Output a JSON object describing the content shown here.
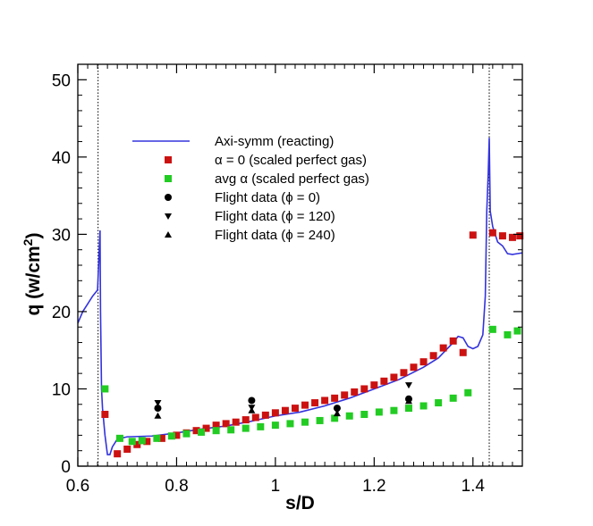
{
  "chart_data": {
    "type": "line",
    "xlabel": "s/D",
    "ylabel_main": "q (w/cm",
    "ylabel_sup": "2",
    "ylabel_close": ")",
    "xlim": [
      0.6,
      1.5
    ],
    "ylim": [
      0,
      52
    ],
    "xticks": [
      0.6,
      0.8,
      1.0,
      1.2,
      1.4
    ],
    "xtick_labels": [
      "0.6",
      "0.8",
      "1",
      "1.2",
      "1.4"
    ],
    "yticks": [
      0,
      10,
      20,
      30,
      40,
      50
    ],
    "ytick_labels": [
      "0",
      "10",
      "20",
      "30",
      "40",
      "50"
    ],
    "grid": false,
    "legend_position": "upper-left",
    "reference_lines_x": [
      0.641,
      1.433
    ],
    "series": [
      {
        "name": "Axi-symm (reacting)",
        "kind": "line",
        "color": "#3333dd",
        "x": [
          0.6,
          0.61,
          0.62,
          0.63,
          0.64,
          0.645,
          0.646,
          0.648,
          0.65,
          0.655,
          0.66,
          0.665,
          0.67,
          0.68,
          0.7,
          0.75,
          0.8,
          0.85,
          0.9,
          0.95,
          1.0,
          1.05,
          1.1,
          1.15,
          1.2,
          1.25,
          1.3,
          1.33,
          1.36,
          1.37,
          1.38,
          1.39,
          1.4,
          1.41,
          1.42,
          1.425,
          1.428,
          1.431,
          1.433,
          1.435,
          1.44,
          1.45,
          1.46,
          1.47,
          1.48,
          1.49,
          1.5
        ],
        "y": [
          18.5,
          20.0,
          21.0,
          22.0,
          22.8,
          30.5,
          20.0,
          10.0,
          7.5,
          4.0,
          1.5,
          1.5,
          2.5,
          3.5,
          3.8,
          3.9,
          4.3,
          4.8,
          5.2,
          5.8,
          6.5,
          7.0,
          7.8,
          8.8,
          10.0,
          11.2,
          12.8,
          14.0,
          16.0,
          16.8,
          16.6,
          15.5,
          15.2,
          15.5,
          17.0,
          22.0,
          33.0,
          38.0,
          42.5,
          33.0,
          31.0,
          29.0,
          28.5,
          27.5,
          27.4,
          27.5,
          27.6
        ]
      },
      {
        "name": "α = 0 (scaled perfect gas)",
        "kind": "square",
        "color": "#cc1111",
        "x": [
          0.655,
          0.68,
          0.7,
          0.72,
          0.74,
          0.77,
          0.8,
          0.82,
          0.84,
          0.86,
          0.88,
          0.9,
          0.92,
          0.94,
          0.96,
          0.98,
          1.0,
          1.02,
          1.04,
          1.06,
          1.08,
          1.1,
          1.12,
          1.14,
          1.16,
          1.18,
          1.2,
          1.22,
          1.24,
          1.26,
          1.28,
          1.3,
          1.32,
          1.34,
          1.36,
          1.38,
          1.4,
          1.44,
          1.46,
          1.48,
          1.495
        ],
        "y": [
          6.7,
          1.6,
          2.2,
          2.8,
          3.2,
          3.6,
          4.0,
          4.3,
          4.6,
          4.9,
          5.3,
          5.5,
          5.7,
          6.0,
          6.3,
          6.6,
          6.9,
          7.2,
          7.5,
          7.9,
          8.2,
          8.5,
          8.8,
          9.2,
          9.6,
          10.0,
          10.5,
          11.0,
          11.5,
          12.1,
          12.8,
          13.5,
          14.3,
          15.3,
          16.2,
          14.7,
          29.9,
          30.2,
          29.8,
          29.6,
          29.8
        ]
      },
      {
        "name": "avg α (scaled perfect gas)",
        "kind": "square",
        "color": "#22cc22",
        "x": [
          0.655,
          0.685,
          0.71,
          0.73,
          0.76,
          0.79,
          0.82,
          0.85,
          0.88,
          0.91,
          0.94,
          0.97,
          1.0,
          1.03,
          1.06,
          1.09,
          1.12,
          1.15,
          1.18,
          1.21,
          1.24,
          1.27,
          1.3,
          1.33,
          1.36,
          1.39,
          1.44,
          1.47,
          1.49
        ],
        "y": [
          10.0,
          3.6,
          3.2,
          3.3,
          3.6,
          3.9,
          4.2,
          4.4,
          4.6,
          4.7,
          4.9,
          5.1,
          5.3,
          5.5,
          5.7,
          5.9,
          6.2,
          6.5,
          6.7,
          7.0,
          7.2,
          7.5,
          7.8,
          8.2,
          8.8,
          9.5,
          17.7,
          17.0,
          17.5
        ]
      },
      {
        "name": "Flight data (ϕ = 0)",
        "kind": "circle",
        "color": "#000000",
        "x": [
          0.762,
          0.952,
          1.125,
          1.27
        ],
        "y": [
          7.5,
          8.5,
          7.5,
          8.7
        ]
      },
      {
        "name": "Flight data (ϕ = 120)",
        "kind": "triangle-down",
        "color": "#000000",
        "x": [
          0.762,
          0.952,
          1.125,
          1.27
        ],
        "y": [
          8.2,
          7.6,
          7.2,
          10.5
        ]
      },
      {
        "name": "Flight data (ϕ = 240)",
        "kind": "triangle-up",
        "color": "#000000",
        "x": [
          0.762,
          0.952,
          1.125,
          1.27
        ],
        "y": [
          6.5,
          7.2,
          6.8,
          8.4
        ]
      }
    ]
  }
}
